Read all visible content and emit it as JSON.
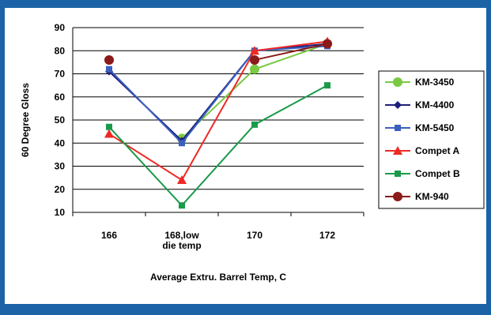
{
  "chart_data": {
    "type": "line",
    "title": "",
    "xlabel": "Average Extru. Barrel Temp, C",
    "ylabel": "60 Degree Gloss",
    "categories": [
      "166",
      "168,low\ndie temp",
      "170",
      "172"
    ],
    "ylim": [
      10,
      90
    ],
    "yticks": [
      10,
      20,
      30,
      40,
      50,
      60,
      70,
      80,
      90
    ],
    "grid": "horizontal",
    "legend_position": "right",
    "series": [
      {
        "name": "KM-3450",
        "color": "#7ac943",
        "marker": "circle",
        "values": [
          null,
          42,
          72,
          83
        ]
      },
      {
        "name": "KM-4400",
        "color": "#1f1f7a",
        "marker": "diamond",
        "values": [
          71,
          41,
          80,
          83
        ]
      },
      {
        "name": "KM-5450",
        "color": "#3a5fbf",
        "marker": "square",
        "values": [
          72,
          40,
          80,
          82
        ]
      },
      {
        "name": "Compet A",
        "color": "#ee2a24",
        "marker": "triangle",
        "values": [
          44,
          24,
          80,
          84
        ]
      },
      {
        "name": "Compet B",
        "color": "#1a9a4a",
        "marker": "square",
        "values": [
          47,
          13,
          48,
          65
        ]
      },
      {
        "name": "KM-940",
        "color": "#8b1a1a",
        "marker": "circle",
        "values": [
          76,
          null,
          76,
          83
        ]
      }
    ]
  },
  "frame": {
    "border_color": "#1b63a6"
  }
}
